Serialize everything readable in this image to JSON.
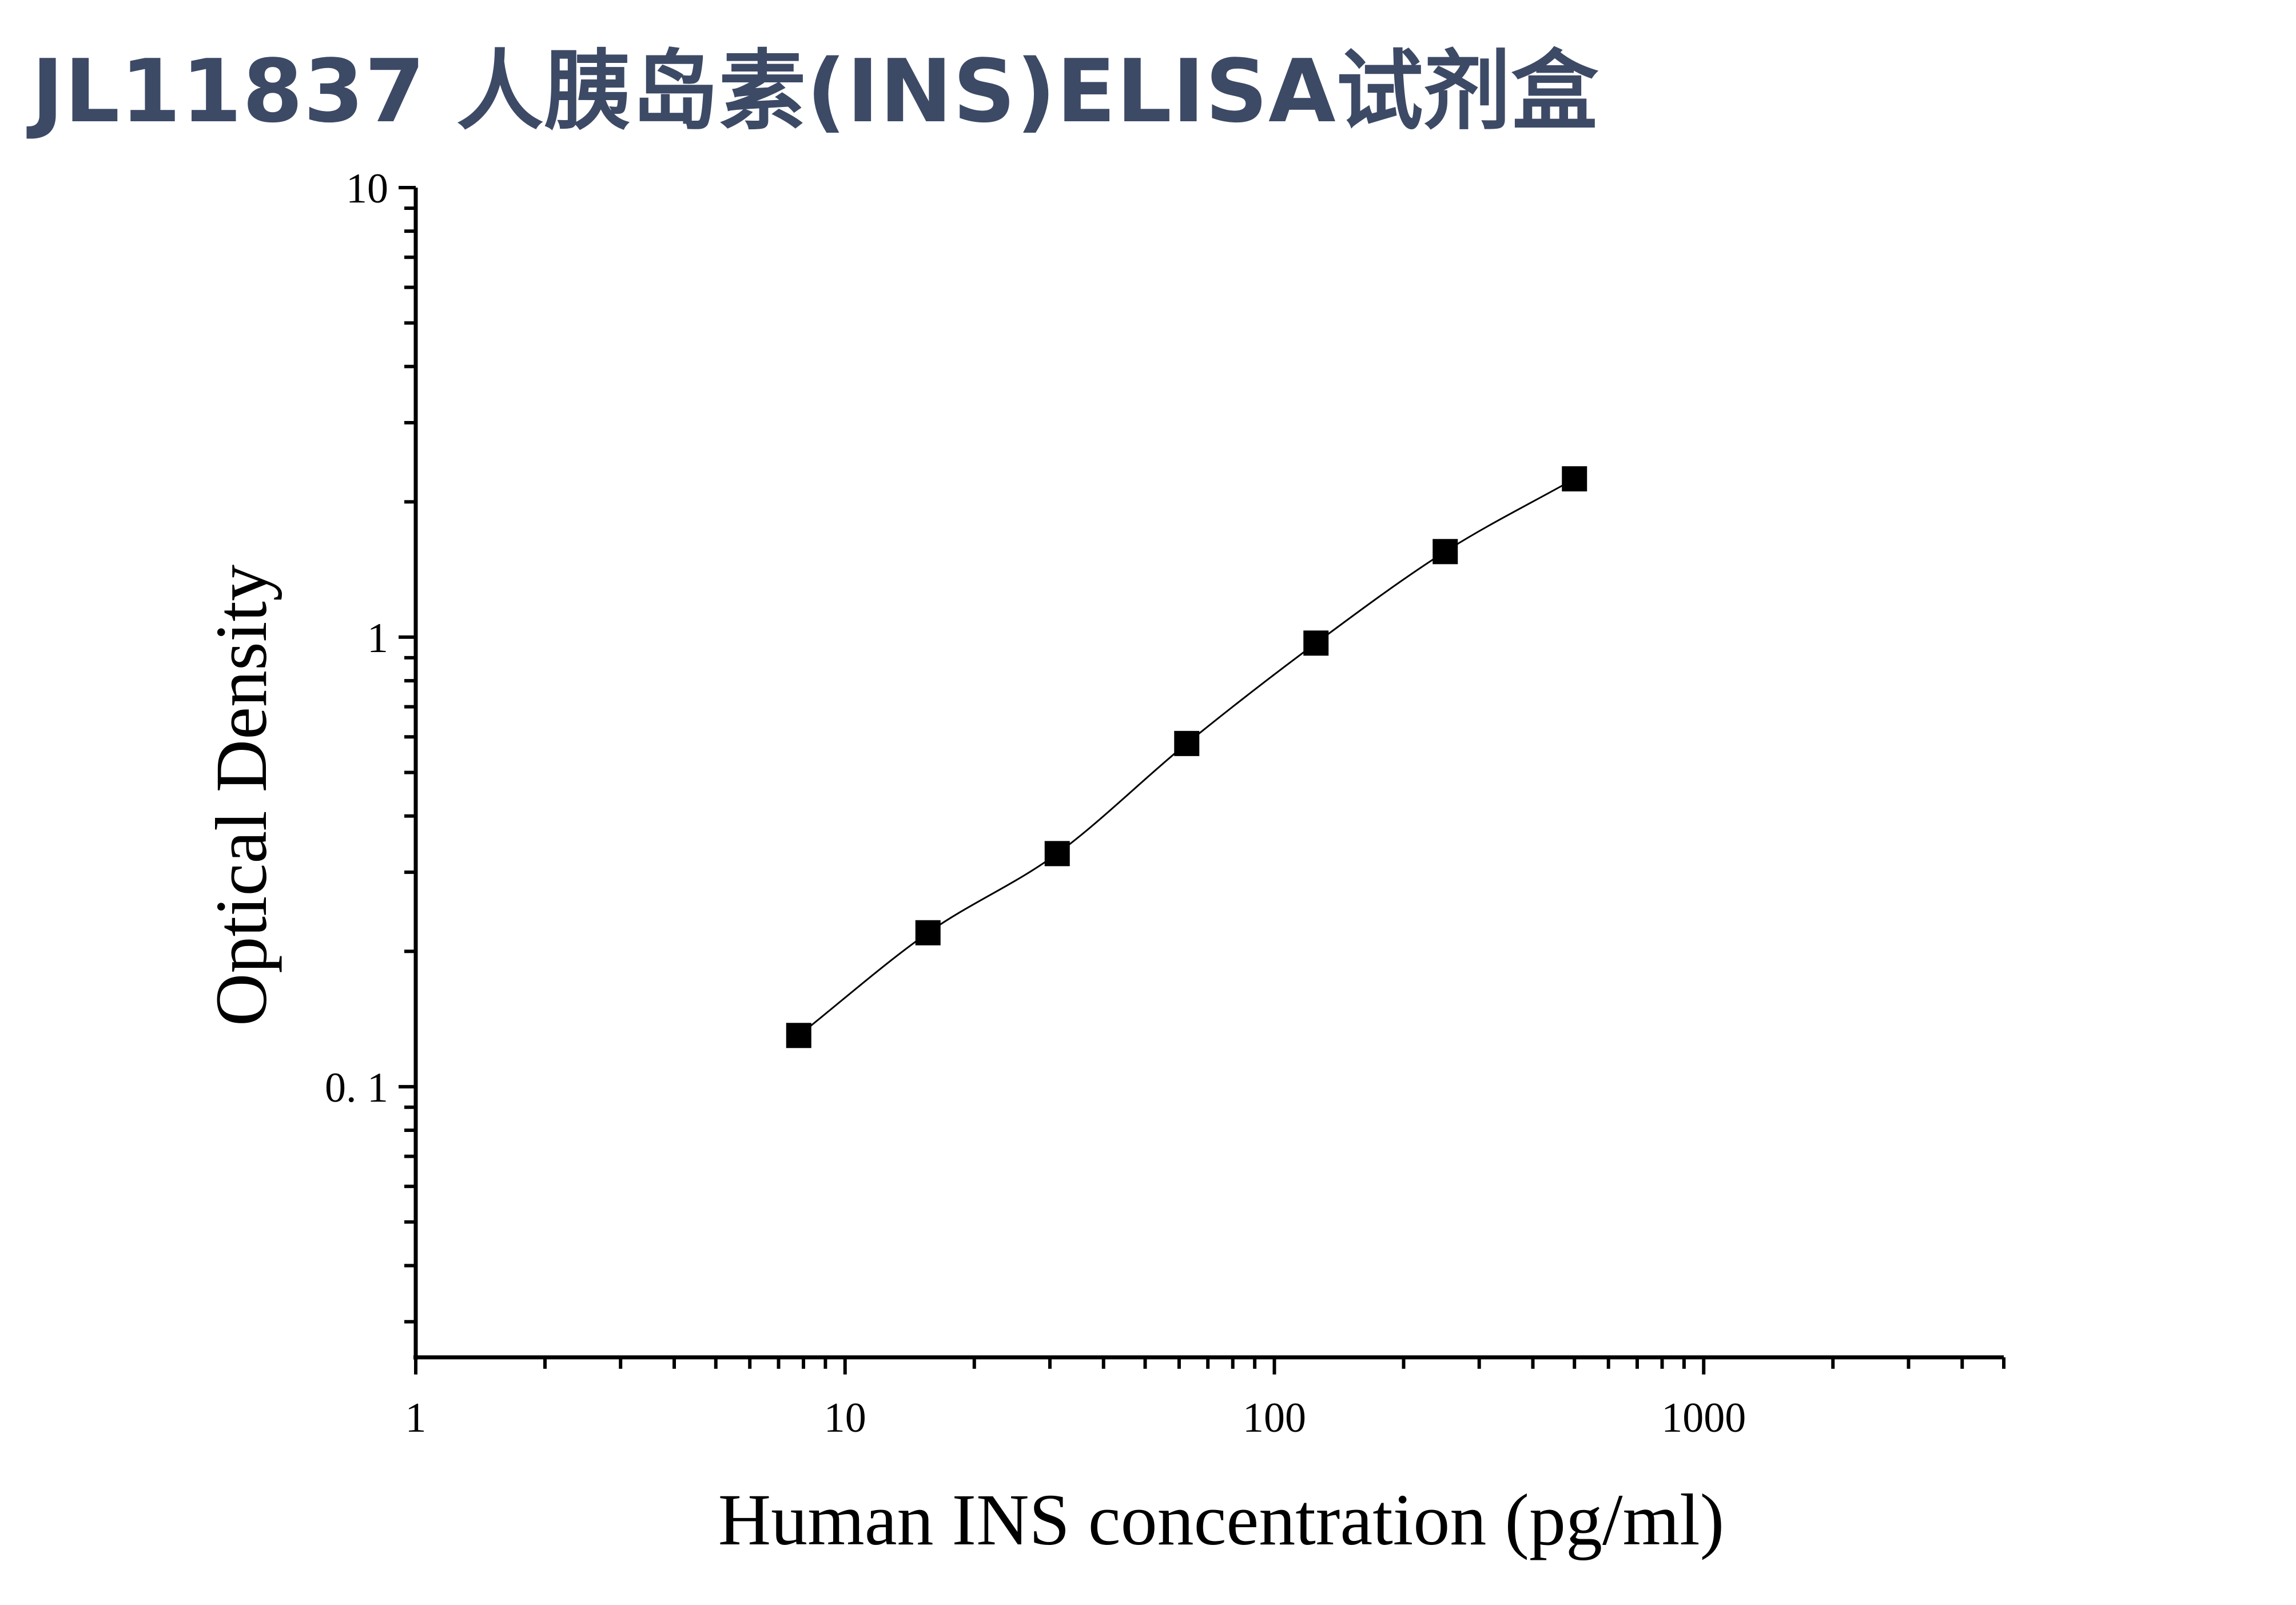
{
  "page": {
    "title": "JL11837 人胰岛素(INS)ELISA试剂盒"
  },
  "chart_data": {
    "type": "scatter",
    "title": "",
    "xlabel": "Human INS concentration (pg/ml)",
    "ylabel": "Optical Density",
    "x_scale": "log",
    "y_scale": "log",
    "xlim": [
      1,
      5000
    ],
    "ylim": [
      0.025,
      10
    ],
    "x_ticks": [
      1,
      10,
      100,
      1000
    ],
    "x_tick_labels": [
      "1",
      "10",
      "100",
      "1000"
    ],
    "y_ticks": [
      0.1,
      1,
      10
    ],
    "y_tick_labels": [
      "0. 1",
      "1",
      "10"
    ],
    "grid": false,
    "legend": "none",
    "marker": "square",
    "fit_curve": true,
    "colors": {
      "marker": "#000000",
      "curve": "#000000",
      "axis": "#000000",
      "title": "#3d4a66"
    },
    "series": [
      {
        "x": [
          7.8,
          15.6,
          31.2,
          62.5,
          125,
          250,
          500
        ],
        "y": [
          0.13,
          0.22,
          0.33,
          0.58,
          0.97,
          1.55,
          2.25
        ]
      }
    ]
  }
}
